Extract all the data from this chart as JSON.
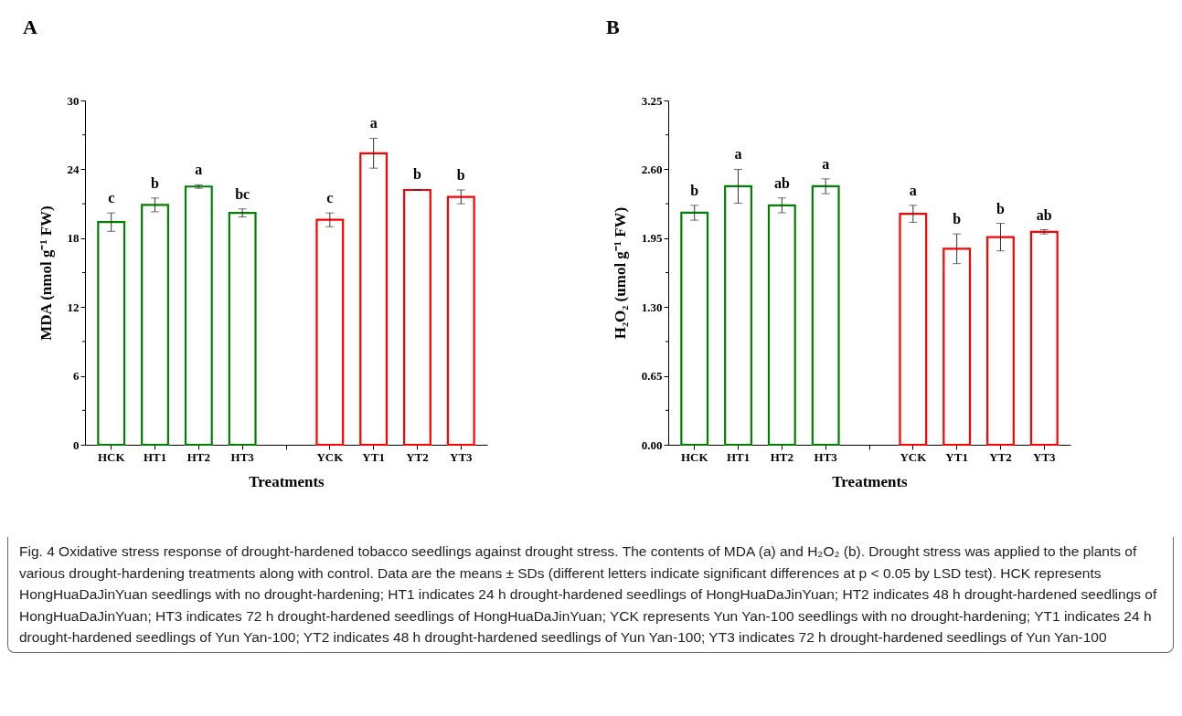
{
  "chart_data": [
    {
      "type": "bar",
      "title": "A",
      "xlabel": "Treatments",
      "ylabel": "MDA (nmol g⁻¹ FW)",
      "categories": [
        "HCK",
        "HT1",
        "HT2",
        "HT3",
        null,
        "YCK",
        "YT1",
        "YT2",
        "YT3"
      ],
      "values": [
        19.4,
        20.9,
        22.5,
        20.2,
        null,
        19.6,
        25.4,
        22.2,
        21.6
      ],
      "errors": [
        0.8,
        0.6,
        0.15,
        0.35,
        null,
        0.6,
        1.3,
        0.05,
        0.6
      ],
      "colors": [
        "#008000",
        "#008000",
        "#008000",
        "#008000",
        null,
        "#ff0000",
        "#ff0000",
        "#ff0000",
        "#ff0000"
      ],
      "ylim": [
        0,
        30
      ],
      "yticks": [
        0,
        {
          "value": 3,
          "label": null
        },
        6,
        {
          "value": 9,
          "label": null
        },
        12,
        {
          "value": 15,
          "label": null
        },
        18,
        {
          "value": 21,
          "label": null
        },
        24,
        {
          "value": 27,
          "label": null
        },
        30
      ],
      "grid": false,
      "annotations": [
        "c",
        "b",
        "a",
        "bc",
        "c",
        "a",
        "b",
        "b",
        "Fig. 4 Oxidative stress response of drought-hardened tobacco seedlings against drought stress. The contents of MDA (a) and H₂O₂ (b). Drought stress was applied to the plants of various drought-hardening treatments along with control. Data are the means ± SDs (different letters indicate significant differences at p < 0.05 by LSD test). HCK represents HongHuaDaJinYuan seedlings with no drought-hardening; HT1 indicates 24 h drought-hardened seedlings of HongHuaDaJinYuan; HT2 indicates 48 h drought-hardened seedlings of HongHuaDaJinYuan; HT3 indicates 72 h drought-hardened seedlings of HongHuaDaJinYuan; YCK represents Yun Yan-100 seedlings with no drought-hardening; YT1 indicates 24 h drought-hardened seedlings of Yun Yan-100; YT2 indicates 48 h drought-hardened seedlings of Yun Yan-100; YT3 indicates 72 h drought-hardened seedlings of Yun Yan-100"
      ]
    },
    {
      "type": "bar",
      "title": "B",
      "xlabel": "Treatments",
      "ylabel": "H₂O₂ (umol g⁻¹ FW)",
      "categories": [
        "HCK",
        "HT1",
        "HT2",
        "HT3",
        null,
        "YCK",
        "YT1",
        "YT2",
        "YT3"
      ],
      "values": [
        2.19,
        2.44,
        2.26,
        2.44,
        null,
        2.18,
        1.85,
        1.96,
        2.01
      ],
      "errors": [
        0.07,
        0.16,
        0.07,
        0.07,
        null,
        0.08,
        0.14,
        0.13,
        0.02
      ],
      "colors": [
        "#008000",
        "#008000",
        "#008000",
        "#008000",
        null,
        "#ff0000",
        "#ff0000",
        "#ff0000",
        "#ff0000"
      ],
      "ylim": [
        0,
        3.25
      ],
      "yticks": [
        {
          "value": 0,
          "label": "0.00"
        },
        {
          "value": 0.325,
          "label": null
        },
        0.65,
        {
          "value": 0.975,
          "label": null
        },
        {
          "value": 1.3,
          "label": "1.30"
        },
        {
          "value": 1.625,
          "label": null
        },
        1.95,
        {
          "value": 2.275,
          "label": null
        },
        {
          "value": 2.6,
          "label": "2.60"
        },
        {
          "value": 2.925,
          "label": null
        },
        3.25
      ],
      "grid": false,
      "annotations": [
        "b",
        "a",
        "ab",
        "a",
        "a",
        "b",
        "b",
        "ab"
      ]
    }
  ]
}
